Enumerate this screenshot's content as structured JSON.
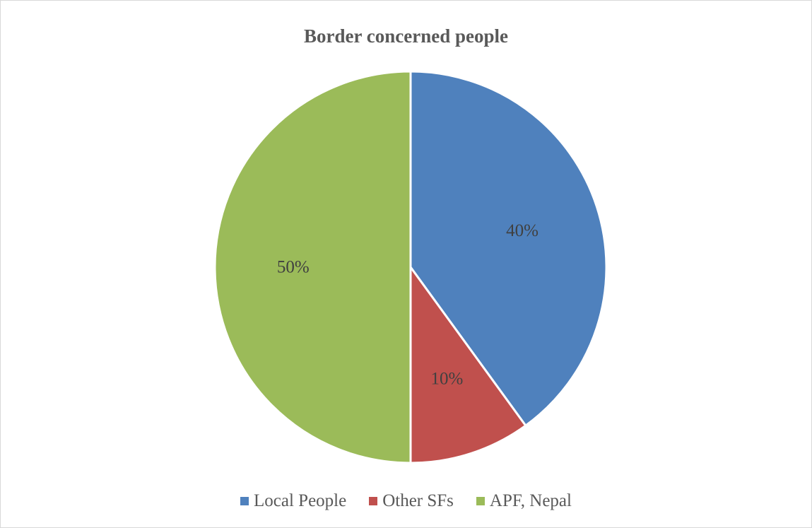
{
  "chart_data": {
    "type": "pie",
    "title": "Border concerned people",
    "categories": [
      "Local People",
      "Other SFs",
      "APF, Nepal"
    ],
    "values": [
      40,
      10,
      50
    ],
    "data_labels": [
      "40%",
      "10%",
      "50%"
    ],
    "colors": [
      "#4f81bd",
      "#c0504d",
      "#9bbb59"
    ],
    "start_angle_deg": 0,
    "direction": "clockwise",
    "legend_position": "bottom"
  }
}
